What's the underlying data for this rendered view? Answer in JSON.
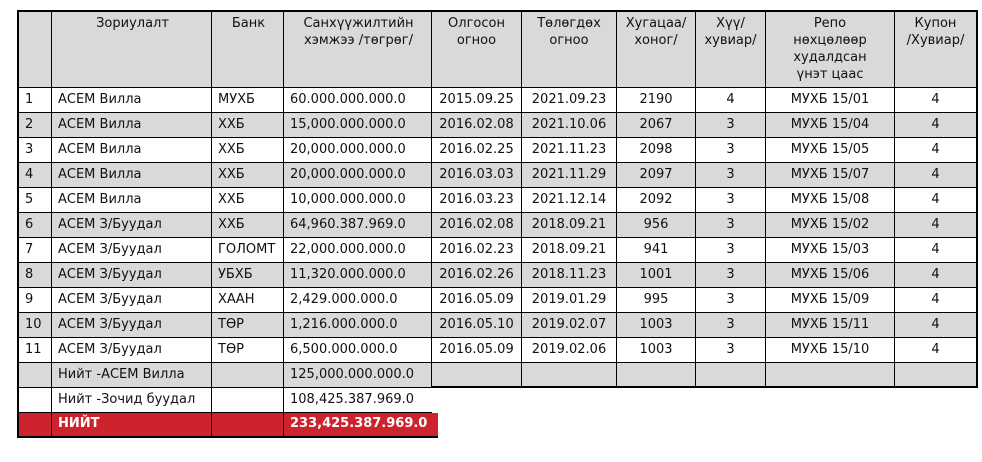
{
  "colors": {
    "header_bg": "#d9d9d9",
    "alt_row_bg": "#d9d9d9",
    "total_bg": "#cd232c",
    "total_text": "#ffffff",
    "border": "#000000"
  },
  "table": {
    "columns": [
      {
        "id": "row-number"
      },
      {
        "id": "purpose"
      },
      {
        "id": "bank"
      },
      {
        "id": "amount"
      },
      {
        "id": "issued-date"
      },
      {
        "id": "due-date"
      },
      {
        "id": "duration-days"
      },
      {
        "id": "interest-rate"
      },
      {
        "id": "repo-security"
      },
      {
        "id": "coupon-rate"
      }
    ],
    "header": [
      "",
      "Зориулалт",
      "Банк",
      "Санхүүжилтийн\nхэмжээ /төгрөг/",
      "Олгосон\nогноо",
      "Төлөгдөх\nогноо",
      "Хугацаа/\nхоног/",
      "Хүү/\nхувиар/",
      "Репо\nнөхцөлөөр\nхудалдсан\nүнэт цаас",
      "Купон\n/Хувиар/"
    ],
    "rows": [
      [
        "1",
        "АСЕМ Вилла",
        "МУХБ",
        "60.000.000.000.0",
        "2015.09.25",
        "2021.09.23",
        "2190",
        "4",
        "МУХБ 15/01",
        "4"
      ],
      [
        "2",
        "АСЕМ Вилла",
        "ХХБ",
        "15,000.000.000.0",
        "2016.02.08",
        "2021.10.06",
        "2067",
        "3",
        "МУХБ 15/04",
        "4"
      ],
      [
        "3",
        "АСЕМ Вилла",
        "ХХБ",
        "20,000.000.000.0",
        "2016.02.25",
        "2021.11.23",
        "2098",
        "3",
        "МУХБ 15/05",
        "4"
      ],
      [
        "4",
        "АСЕМ Вилла",
        "ХХБ",
        "20,000.000.000.0",
        "2016.03.03",
        "2021.11.29",
        "2097",
        "3",
        "МУХБ 15/07",
        "4"
      ],
      [
        "5",
        "АСЕМ Вилла",
        "ХХБ",
        "10,000.000.000.0",
        "2016.03.23",
        "2021.12.14",
        "2092",
        "3",
        "МУХБ 15/08",
        "4"
      ],
      [
        "6",
        "АСЕМ З/Буудал",
        "ХХБ",
        "64,960.387.969.0",
        "2016.02.08",
        "2018.09.21",
        "956",
        "3",
        "МУХБ 15/02",
        "4"
      ],
      [
        "7",
        "АСЕМ З/Буудал",
        "ГОЛОМТ",
        "22,000.000.000.0",
        "2016.02.23",
        "2018.09.21",
        "941",
        "3",
        "МУХБ 15/03",
        "4"
      ],
      [
        "8",
        "АСЕМ З/Буудал",
        "УБХБ",
        "11,320.000.000.0",
        "2016.02.26",
        "2018.11.23",
        "1001",
        "3",
        "МУХБ 15/06",
        "4"
      ],
      [
        "9",
        "АСЕМ З/Буудал",
        "ХААН",
        "2,429.000.000.0",
        "2016.05.09",
        "2019.01.29",
        "995",
        "3",
        "МУХБ 15/09",
        "4"
      ],
      [
        "10",
        "АСЕМ З/Буудал",
        "ТӨР",
        "1,216.000.000.0",
        "2016.05.10",
        "2019.02.07",
        "1003",
        "3",
        "МУХБ 15/11",
        "4"
      ],
      [
        "11",
        "АСЕМ З/Буудал",
        "ТӨР",
        "6,500.000.000.0",
        "2016.05.09",
        "2019.02.06",
        "1003",
        "3",
        "МУХБ 15/10",
        "4"
      ]
    ],
    "summary": [
      {
        "variant": "gray",
        "full": true,
        "cells": [
          "",
          "Нийт -АСЕМ Вилла",
          "",
          "125,000.000.000.0",
          "",
          "",
          "",
          "",
          "",
          ""
        ]
      },
      {
        "variant": "white",
        "full": false,
        "cells": [
          "",
          "Нийт -Зочид буудал",
          "",
          "108,425.387.969.0"
        ]
      },
      {
        "variant": "total",
        "full": false,
        "cells": [
          "",
          "НИЙТ",
          "",
          "233,425.387.969.0"
        ]
      }
    ]
  }
}
